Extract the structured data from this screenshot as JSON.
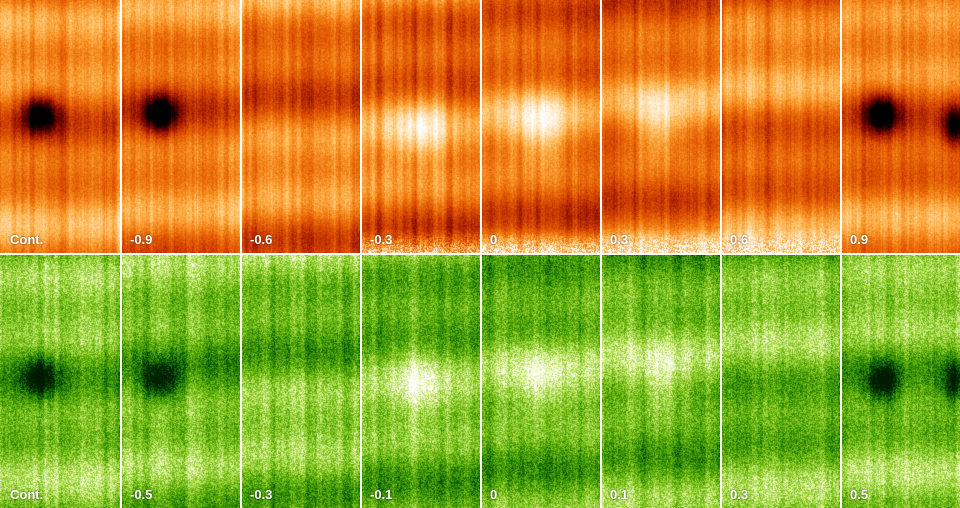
{
  "rows": [
    {
      "name": "red-row",
      "colormap": [
        "#000000",
        "#5a0000",
        "#a31a00",
        "#d94a00",
        "#f07a10",
        "#ffb24a",
        "#ffe0b0",
        "#ffffff"
      ],
      "labels": [
        "Cont.",
        "-0.9",
        "-0.6",
        "-0.3",
        "0",
        "0.3",
        "0.6",
        "0.9"
      ]
    },
    {
      "name": "green-row",
      "colormap": [
        "#001a00",
        "#004a00",
        "#1f7a00",
        "#4aa000",
        "#7cc21a",
        "#b4de5a",
        "#e8f7b0",
        "#ffffff"
      ],
      "labels": [
        "Cont.",
        "-0.5",
        "-0.3",
        "-0.1",
        "0",
        "0.1",
        "0.3",
        "0.5"
      ]
    }
  ]
}
